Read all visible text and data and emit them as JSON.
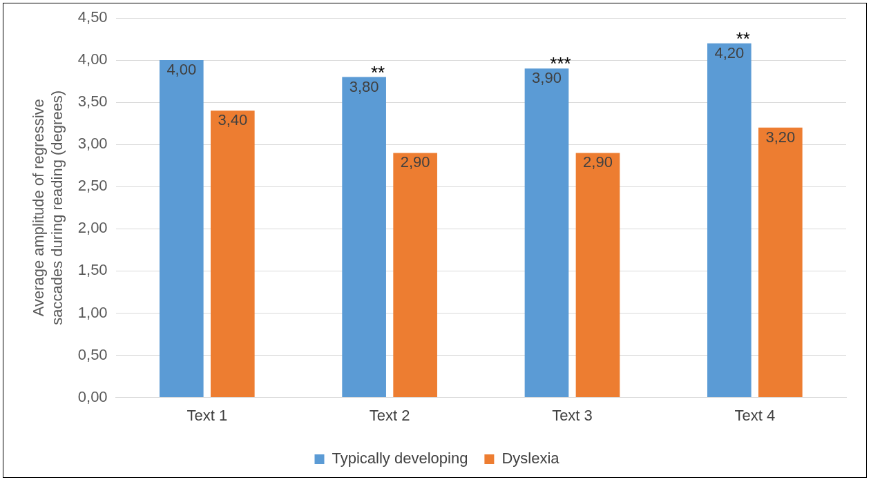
{
  "chart_data": {
    "type": "bar",
    "ylabel": "Average amplitude of regressive saccades during reading (degrees)",
    "categories": [
      "Text 1",
      "Text 2",
      "Text 3",
      "Text 4"
    ],
    "series": [
      {
        "name": "Typically developing",
        "color": "#5b9bd5",
        "values": [
          4.0,
          3.8,
          3.9,
          4.2
        ],
        "value_labels": [
          "4,00",
          "3,80",
          "3,90",
          "4,20"
        ]
      },
      {
        "name": "Dyslexia",
        "color": "#ed7d31",
        "values": [
          3.4,
          2.9,
          2.9,
          3.2
        ],
        "value_labels": [
          "3,40",
          "2,90",
          "2,90",
          "3,20"
        ]
      }
    ],
    "ylim": [
      0,
      4.5
    ],
    "yticks": [
      {
        "value": 0,
        "label": "0,00"
      },
      {
        "value": 0.5,
        "label": "0,50"
      },
      {
        "value": 1,
        "label": "1,00"
      },
      {
        "value": 1.5,
        "label": "1,50"
      },
      {
        "value": 2,
        "label": "2,00"
      },
      {
        "value": 2.5,
        "label": "2,50"
      },
      {
        "value": 3,
        "label": "3,00"
      },
      {
        "value": 3.5,
        "label": "3,50"
      },
      {
        "value": 4,
        "label": "4,00"
      },
      {
        "value": 4.5,
        "label": "4,50"
      }
    ],
    "annotations": [
      "**",
      "***",
      "**"
    ],
    "grid": "y",
    "legend": "bottom"
  }
}
